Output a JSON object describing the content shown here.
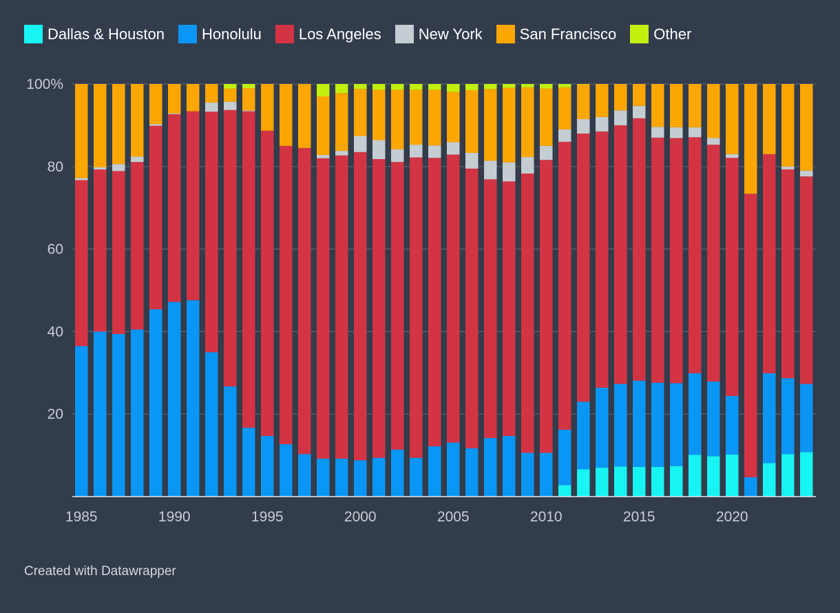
{
  "legend": [
    {
      "label": "Dallas & Houston",
      "color": "#18f3f3"
    },
    {
      "label": "Honolulu",
      "color": "#0a96f4"
    },
    {
      "label": "Los Angeles",
      "color": "#d33444"
    },
    {
      "label": "New York",
      "color": "#c4cdd2"
    },
    {
      "label": "San Francisco",
      "color": "#fca602"
    },
    {
      "label": "Other",
      "color": "#c2ef0e"
    }
  ],
  "footer": "Created with Datawrapper",
  "chart_data": {
    "type": "bar",
    "stacked": true,
    "x": [
      1985,
      1986,
      1987,
      1988,
      1989,
      1990,
      1991,
      1992,
      1993,
      1994,
      1995,
      1996,
      1997,
      1998,
      1999,
      2000,
      2001,
      2002,
      2003,
      2004,
      2005,
      2006,
      2007,
      2008,
      2009,
      2010,
      2011,
      2012,
      2013,
      2014,
      2015,
      2016,
      2017,
      2018,
      2019,
      2020,
      2021,
      2022,
      2023,
      2024
    ],
    "x_tick_labels": [
      "1985",
      "1990",
      "1995",
      "2000",
      "2005",
      "2010",
      "2015",
      "2020"
    ],
    "y_tick_labels": [
      "100%",
      "80",
      "60",
      "40",
      "20"
    ],
    "y_ticks": [
      100,
      80,
      60,
      40,
      20
    ],
    "ylim": [
      0,
      100
    ],
    "grid": true,
    "legend_position": "top-left",
    "series": [
      {
        "name": "Dallas & Houston",
        "color": "#18f3f3",
        "values": [
          0,
          0,
          0,
          0,
          0,
          0,
          0,
          0,
          0,
          0,
          0,
          0,
          0,
          0,
          0,
          0,
          0,
          0,
          0,
          0,
          0,
          0,
          0,
          0,
          0,
          0,
          2.8,
          6.6,
          7.0,
          7.3,
          7.2,
          7.2,
          7.4,
          10.1,
          9.8,
          10.2,
          0,
          8.1,
          10.3,
          10.8
        ]
      },
      {
        "name": "Honolulu",
        "color": "#0a96f4",
        "values": [
          36.5,
          40.0,
          39.4,
          40.5,
          45.4,
          47.2,
          47.6,
          35.0,
          26.7,
          16.7,
          14.7,
          12.7,
          10.3,
          9.2,
          9.2,
          8.8,
          9.4,
          11.4,
          9.4,
          12.2,
          13.1,
          11.7,
          14.2,
          14.7,
          10.6,
          10.6,
          13.4,
          16.4,
          19.4,
          20.0,
          20.9,
          20.4,
          20.1,
          19.8,
          18.1,
          14.2,
          4.7,
          21.8,
          18.4,
          16.5
        ]
      },
      {
        "name": "Los Angeles",
        "color": "#d33444",
        "values": [
          40.2,
          39.3,
          39.5,
          40.6,
          44.5,
          45.5,
          45.8,
          58.3,
          67.0,
          76.7,
          74.0,
          72.3,
          74.2,
          72.8,
          73.5,
          74.7,
          72.4,
          69.7,
          72.8,
          69.9,
          69.8,
          67.8,
          62.7,
          61.7,
          67.7,
          71.0,
          69.8,
          65.0,
          62.1,
          62.7,
          63.6,
          59.4,
          59.4,
          57.2,
          57.4,
          57.7,
          68.7,
          53.1,
          50.6,
          50.3
        ]
      },
      {
        "name": "New York",
        "color": "#c4cdd2",
        "values": [
          0.5,
          0.5,
          1.7,
          1.3,
          0.4,
          0.2,
          0,
          2.2,
          2.0,
          0.2,
          0,
          0,
          0,
          0.8,
          1.1,
          3.9,
          4.6,
          3.1,
          3.1,
          3.0,
          3.0,
          3.8,
          4.5,
          4.6,
          4.0,
          3.4,
          3.0,
          3.5,
          3.5,
          3.6,
          3.0,
          2.6,
          2.6,
          2.4,
          1.6,
          0.9,
          0,
          0,
          0.7,
          1.4
        ]
      },
      {
        "name": "San Francisco",
        "color": "#fca602",
        "values": [
          22.8,
          20.2,
          19.4,
          17.6,
          9.7,
          7.1,
          6.6,
          4.5,
          3.2,
          5.4,
          11.3,
          15.0,
          15.5,
          14.2,
          14.0,
          11.4,
          12.2,
          14.4,
          13.3,
          13.5,
          12.2,
          15.2,
          17.4,
          18.1,
          16.9,
          13.9,
          10.2,
          8.4,
          8.0,
          6.4,
          5.3,
          10.4,
          10.5,
          10.5,
          13.1,
          17.0,
          26.6,
          17.0,
          20.0,
          21.0
        ]
      },
      {
        "name": "Other",
        "color": "#c2ef0e",
        "values": [
          0,
          0,
          0,
          0,
          0,
          0,
          0,
          0,
          1.1,
          1.0,
          0,
          0,
          0,
          3.0,
          2.2,
          1.2,
          1.4,
          1.4,
          1.4,
          1.4,
          1.9,
          1.5,
          1.2,
          0.9,
          0.8,
          1.1,
          0.8,
          0.1,
          0,
          0,
          0,
          0,
          0,
          0,
          0,
          0,
          0,
          0,
          0,
          0
        ]
      }
    ]
  }
}
